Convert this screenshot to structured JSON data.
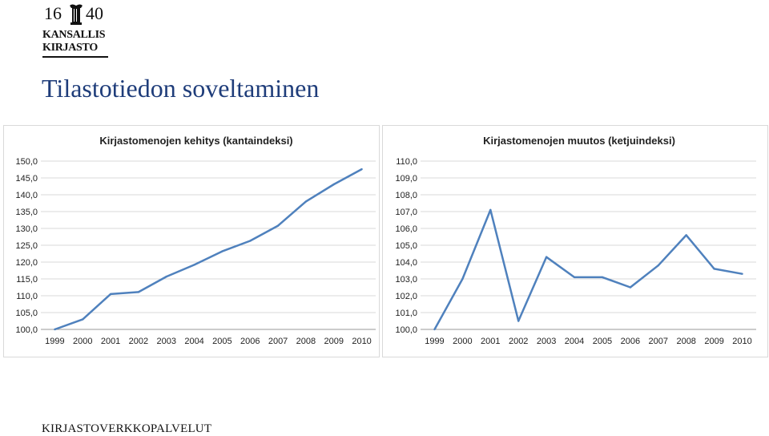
{
  "logo": {
    "year_left": "16",
    "year_right": "40",
    "line1": "KANSALLIS",
    "line2": "KIRJASTO"
  },
  "page_title": "Tilastotiedon soveltaminen",
  "footer": "KIRJASTOVERKKOPALVELUT",
  "colors": {
    "line": "#4f81bd",
    "grid": "#d9d9d9",
    "title": "#1f3d7a"
  },
  "chart_data": [
    {
      "type": "line",
      "title": "Kirjastomenojen kehitys (kantaindeksi)",
      "categories": [
        "1999",
        "2000",
        "2001",
        "2002",
        "2003",
        "2004",
        "2005",
        "2006",
        "2007",
        "2008",
        "2009",
        "2010"
      ],
      "series": [
        {
          "values": [
            100.0,
            103.0,
            110.5,
            111.1,
            115.7,
            119.2,
            123.2,
            126.3,
            130.8,
            138.0,
            143.1,
            147.6
          ]
        }
      ],
      "yticks": [
        "100,0",
        "105,0",
        "110,0",
        "115,0",
        "120,0",
        "125,0",
        "130,0",
        "135,0",
        "140,0",
        "145,0",
        "150,0"
      ],
      "ylim": [
        100,
        150
      ],
      "grid": true,
      "legend": "none"
    },
    {
      "type": "line",
      "title": "Kirjastomenojen muutos (ketjuindeksi)",
      "categories": [
        "1999",
        "2000",
        "2001",
        "2002",
        "2003",
        "2004",
        "2005",
        "2006",
        "2007",
        "2008",
        "2009",
        "2010"
      ],
      "series": [
        {
          "values": [
            100.0,
            103.0,
            107.1,
            100.5,
            104.3,
            103.1,
            103.1,
            102.5,
            103.8,
            105.6,
            103.6,
            103.3
          ]
        }
      ],
      "yticks": [
        "100,0",
        "101,0",
        "102,0",
        "103,0",
        "104,0",
        "105,0",
        "106,0",
        "107,0",
        "108,0",
        "109,0",
        "110,0"
      ],
      "ylim": [
        100,
        110
      ],
      "grid": true,
      "legend": "none"
    }
  ]
}
